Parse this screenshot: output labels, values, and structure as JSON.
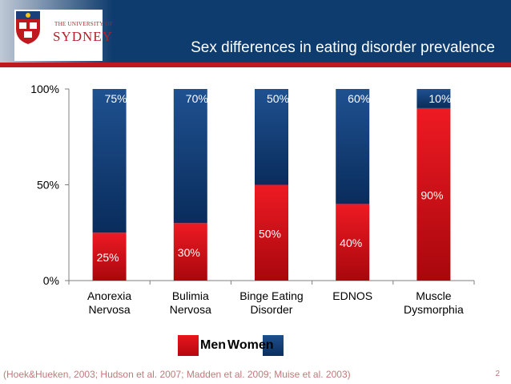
{
  "header": {
    "title": "Sex differences in eating disorder prevalence",
    "logo_top": "THE UNIVERSITY OF",
    "logo_main": "SYDNEY",
    "colors": {
      "navy": "#0f3c6e",
      "red": "#c0181f"
    }
  },
  "chart_data": {
    "type": "bar",
    "stacked": true,
    "categories": [
      "Anorexia\nNervosa",
      "Bulimia\nNervosa",
      "Binge Eating\nDisorder",
      "EDNOS",
      "Muscle\nDysmorphia"
    ],
    "series": [
      {
        "name": "Men",
        "values": [
          25,
          30,
          50,
          40,
          90
        ],
        "labels": [
          "25%",
          "30%",
          "50%",
          "40%",
          "90%"
        ],
        "color": "#d9121b"
      },
      {
        "name": "Women",
        "values": [
          75,
          70,
          50,
          60,
          10
        ],
        "labels": [
          "75%",
          "70%",
          "50%",
          "60%",
          "10%"
        ],
        "color": "#12427a"
      }
    ],
    "ylim": [
      0,
      100
    ],
    "yticks": [
      "0%",
      "50%",
      "100%"
    ],
    "legend": "bottom"
  },
  "citation": "(Hoek&Hueken, 2003; Hudson et al. 2007; Madden et al. 2009; Muise et al. 2003)",
  "page_number": "2"
}
